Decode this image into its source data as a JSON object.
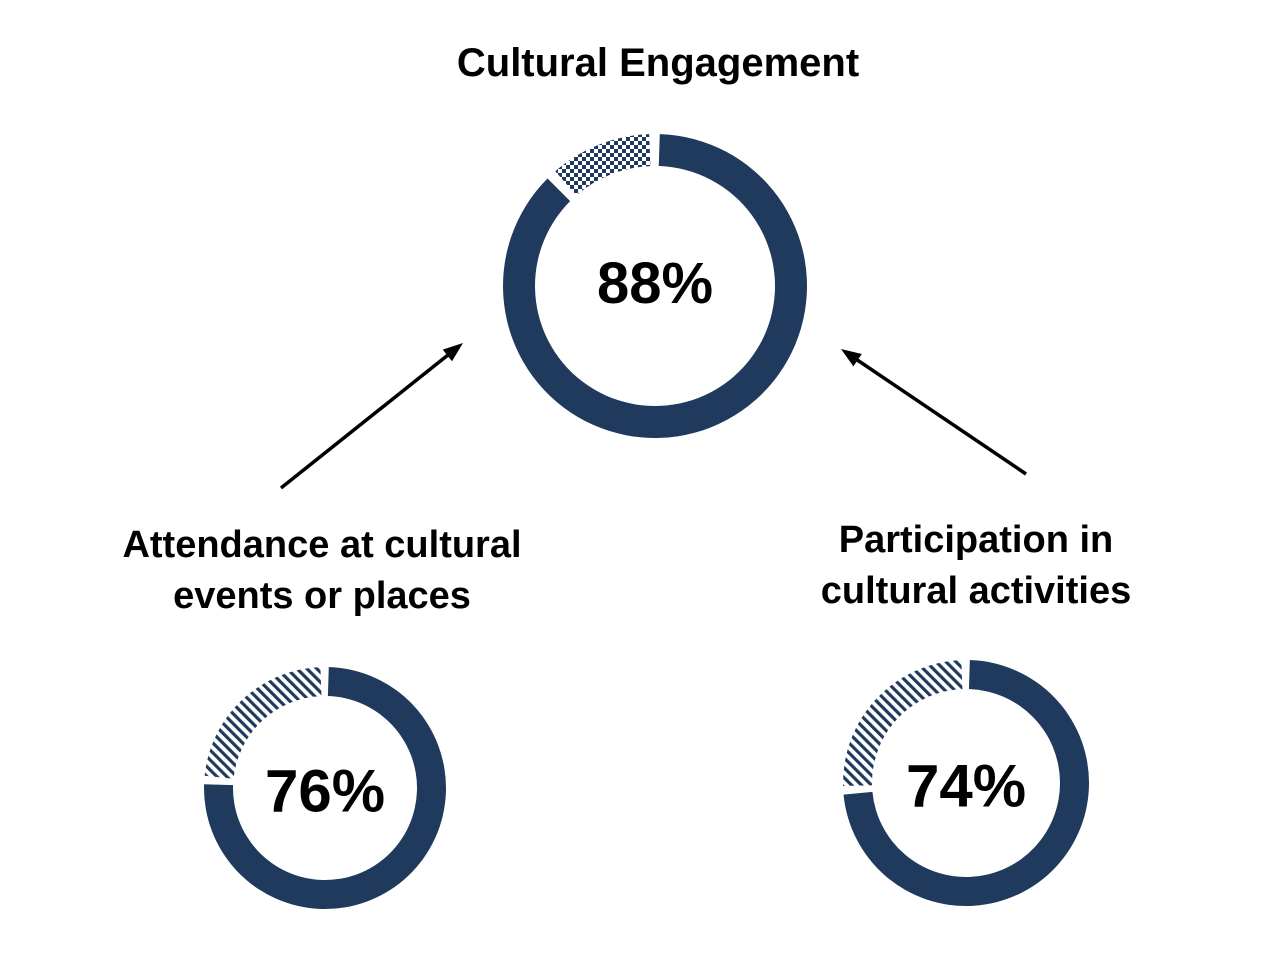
{
  "title": "Cultural Engagement",
  "colors": {
    "ring": "#1F3A5C",
    "text": "#000000",
    "arrow": "#000000",
    "background": "#FFFFFF"
  },
  "chart_data": [
    {
      "type": "donut",
      "title": "Cultural Engagement",
      "value_pct": 88,
      "display": "88%",
      "remainder_pct": 12,
      "remainder_pattern": "checkerboard",
      "ring_color": "#1F3A5C"
    },
    {
      "type": "donut",
      "title": "Attendance at cultural events or places",
      "title_lines": [
        "Attendance at cultural",
        "events or places"
      ],
      "value_pct": 76,
      "display": "76%",
      "remainder_pct": 24,
      "remainder_pattern": "diagonal-stripes",
      "ring_color": "#1F3A5C"
    },
    {
      "type": "donut",
      "title": "Participation in cultural activities",
      "title_lines": [
        "Participation in",
        "cultural activities"
      ],
      "value_pct": 74,
      "display": "74%",
      "remainder_pct": 26,
      "remainder_pattern": "diagonal-stripes",
      "ring_color": "#1F3A5C"
    }
  ],
  "connectors": [
    {
      "from": "Attendance at cultural events or places",
      "to": "Cultural Engagement"
    },
    {
      "from": "Participation in cultural activities",
      "to": "Cultural Engagement"
    }
  ]
}
